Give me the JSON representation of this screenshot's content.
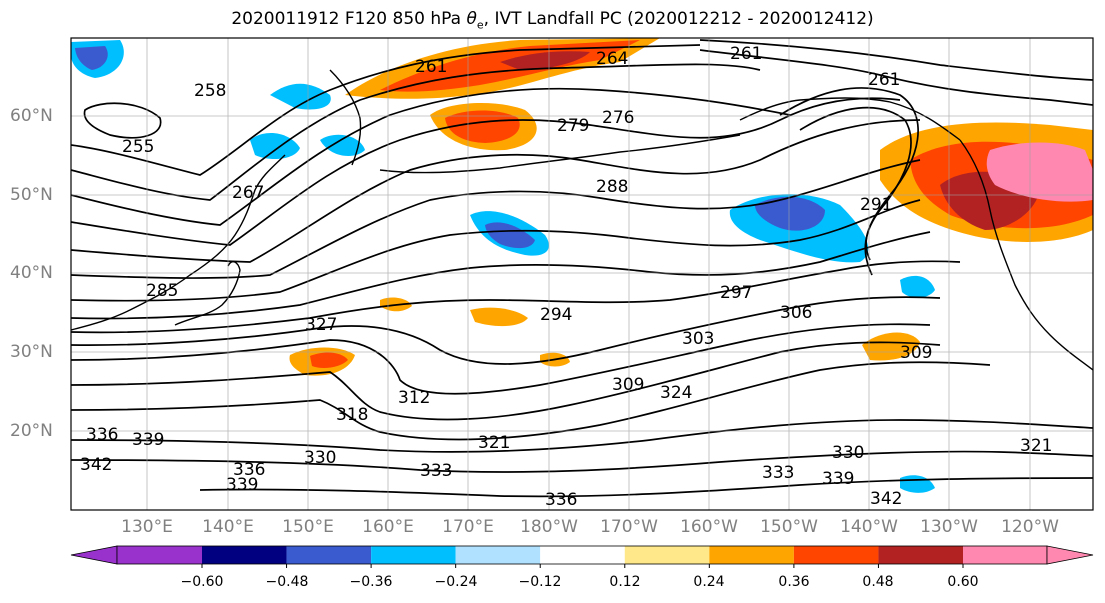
{
  "title": {
    "prefix": "2020011912 F120 850 hPa ",
    "theta": "θ",
    "subscript": "e",
    "suffix": ", IVT Landfall PC (2020012212 - 2020012412)"
  },
  "map": {
    "projection": "Plate Carree",
    "lon_range": [
      "120°E",
      "118°W"
    ],
    "lat_range": [
      "10°N",
      "70°N"
    ],
    "grid": true,
    "lat_labels": [
      "60°N",
      "50°N",
      "40°N",
      "30°N",
      "20°N"
    ],
    "lon_labels": [
      "130°E",
      "140°E",
      "150°E",
      "160°E",
      "170°E",
      "180°W",
      "170°W",
      "160°W",
      "150°W",
      "140°W",
      "130°W",
      "120°W"
    ],
    "contour_labels": [
      "255",
      "258",
      "261",
      "261",
      "261",
      "264",
      "267",
      "276",
      "279",
      "285",
      "288",
      "291",
      "294",
      "297",
      "303",
      "306",
      "309",
      "309",
      "312",
      "318",
      "321",
      "321",
      "324",
      "327",
      "330",
      "330",
      "333",
      "333",
      "336",
      "336",
      "336",
      "339",
      "339",
      "339",
      "342",
      "342"
    ],
    "contour_color": "#000000"
  },
  "colorbar": {
    "extend": "both",
    "bins": [
      {
        "color": "#9932cc"
      },
      {
        "color": "#000080"
      },
      {
        "color": "#3a5bcf"
      },
      {
        "color": "#00bfff"
      },
      {
        "color": "#b0e2ff"
      },
      {
        "color": "#ffffff"
      },
      {
        "color": "#ffe88a"
      },
      {
        "color": "#ffa500"
      },
      {
        "color": "#ff4500"
      },
      {
        "color": "#b22222"
      },
      {
        "color": "#ff88b0"
      }
    ],
    "tick_labels": [
      "−0.60",
      "−0.48",
      "−0.36",
      "−0.24",
      "−0.12",
      "0.12",
      "0.24",
      "0.36",
      "0.48",
      "0.60"
    ]
  }
}
